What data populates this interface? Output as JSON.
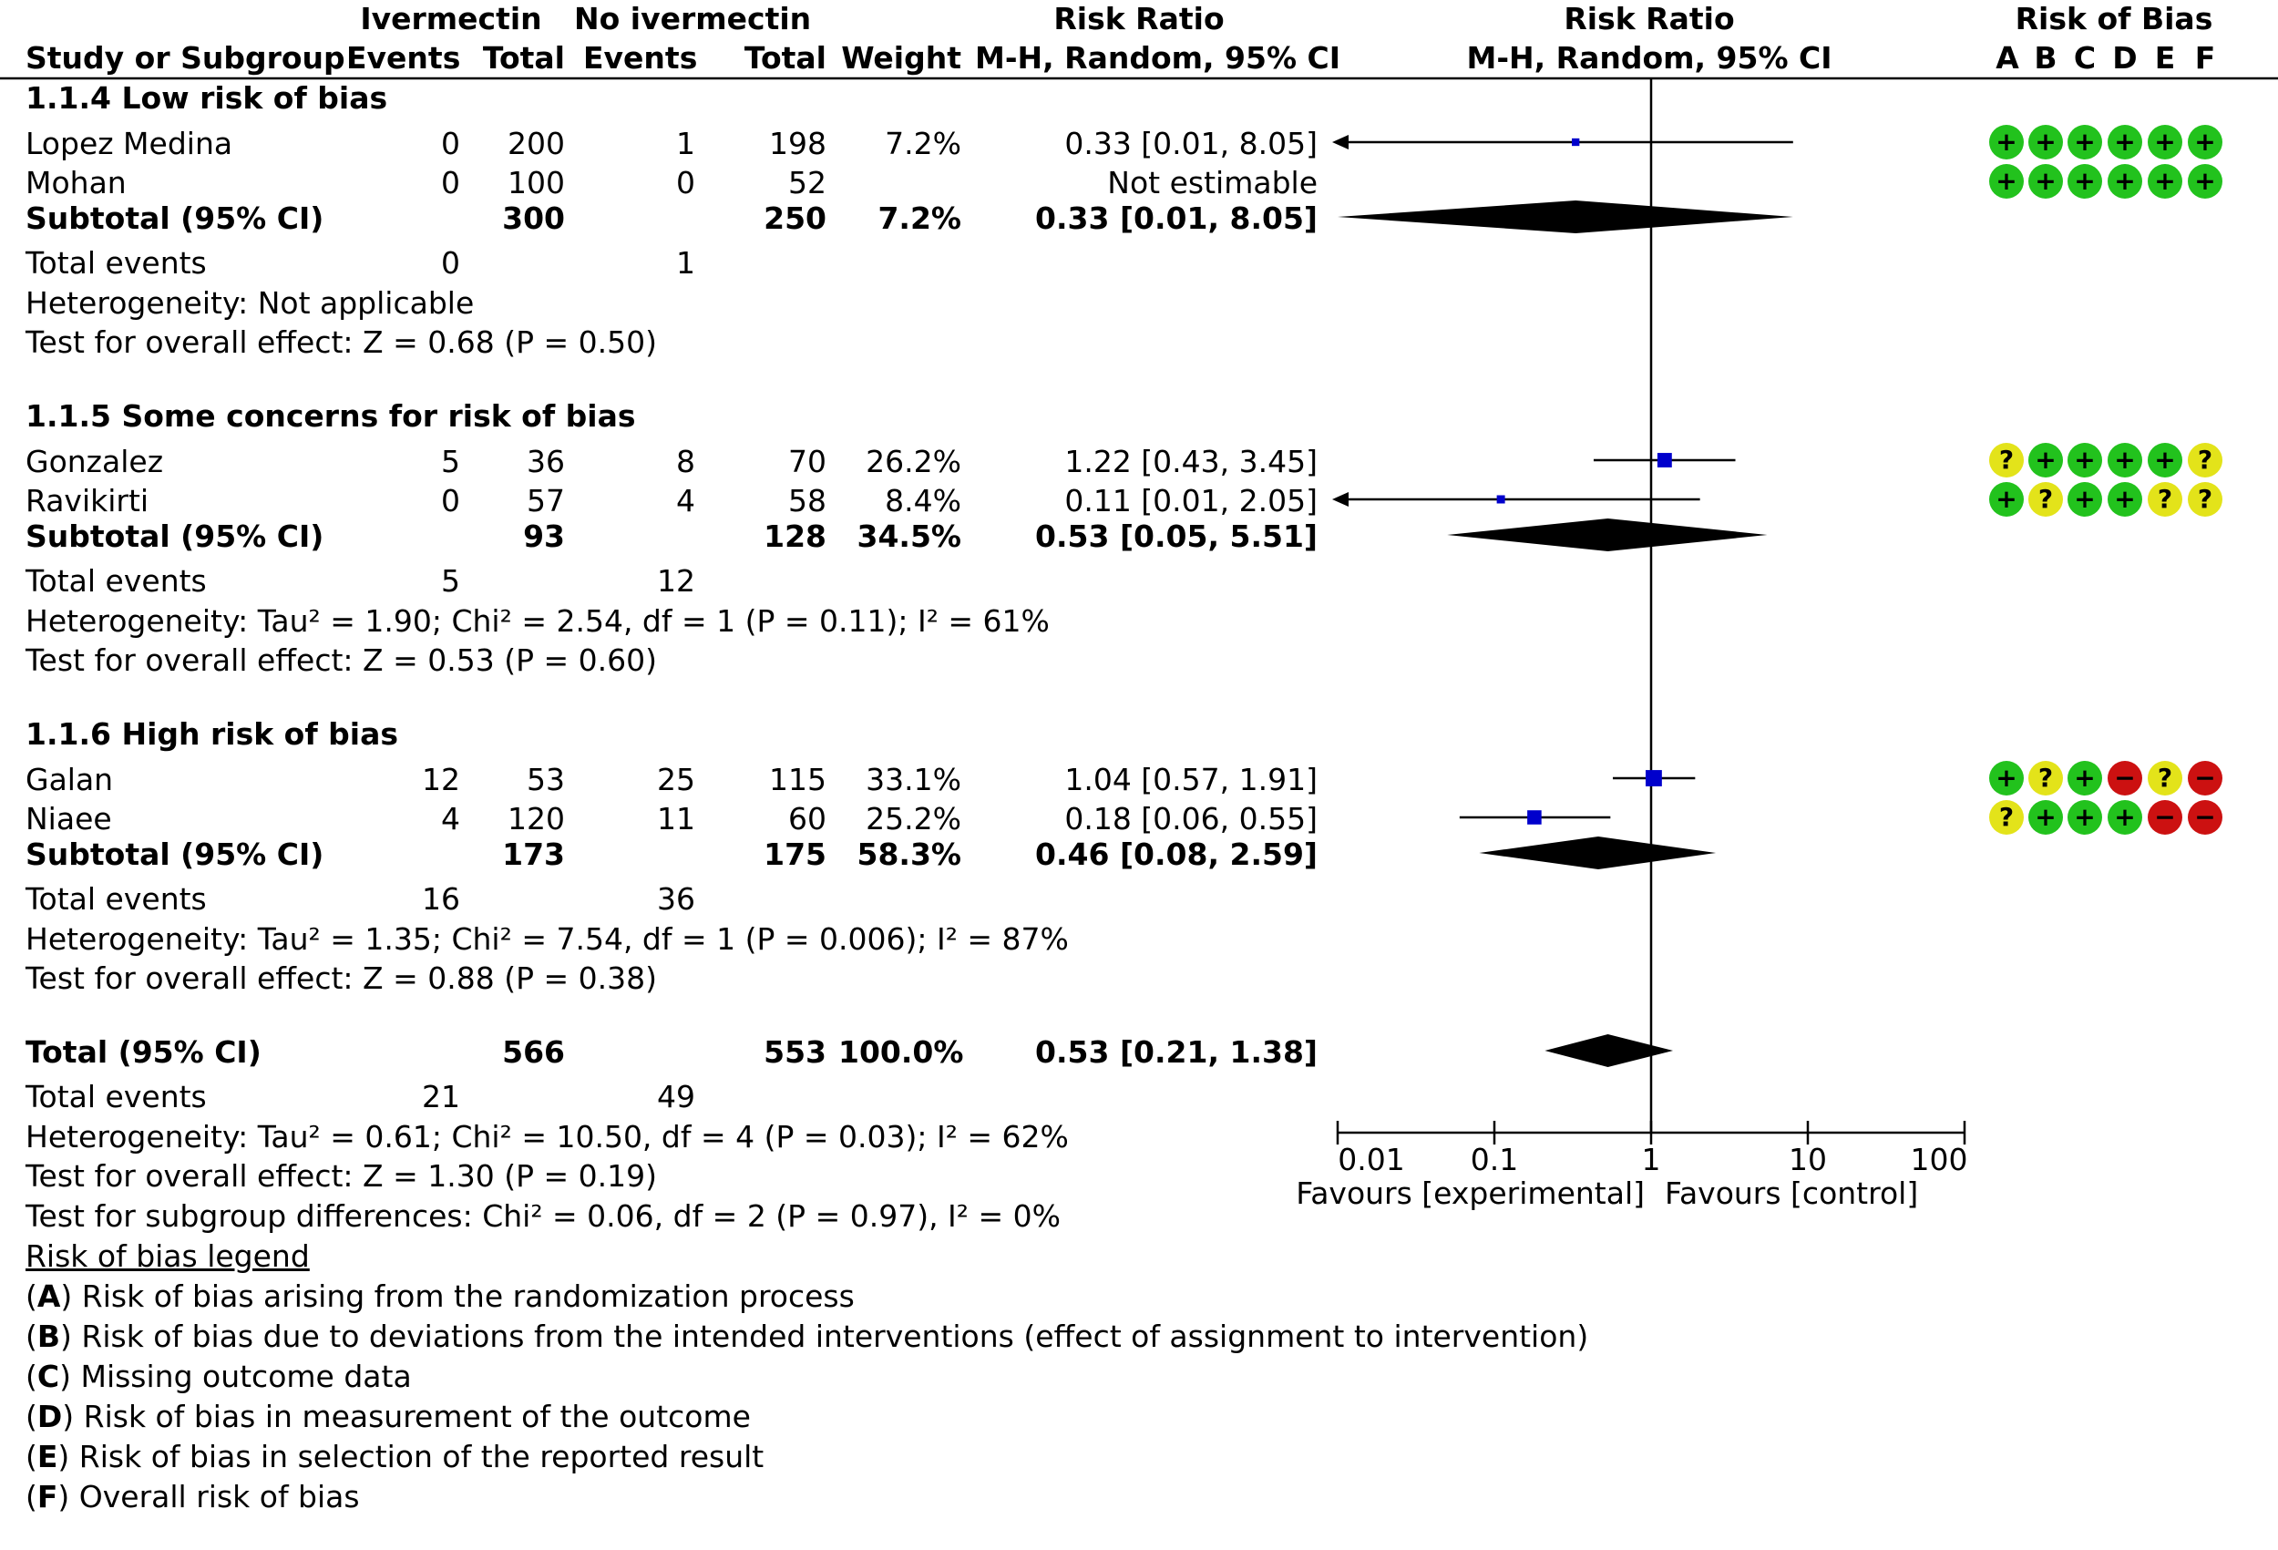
{
  "header": {
    "group1": "Ivermectin",
    "group2": "No ivermectin",
    "rr_col": "Risk Ratio",
    "rr_plot": "Risk Ratio",
    "rob": "Risk of Bias",
    "study": "Study or Subgroup",
    "events1": "Events",
    "total1": "Total",
    "events2": "Events",
    "total2": "Total",
    "weight": "Weight",
    "method_col": "M-H, Random, 95% CI",
    "method_plot": "M-H, Random, 95% CI",
    "rob_letters": [
      "A",
      "B",
      "C",
      "D",
      "E",
      "F"
    ]
  },
  "subgroups": [
    {
      "title": "1.1.4 Low risk of bias",
      "studies": [
        {
          "name": "Lopez Medina",
          "e1": "0",
          "t1": "200",
          "e2": "1",
          "t2": "198",
          "weight": "7.2%",
          "ci": "0.33 [0.01, 8.05]",
          "rr": 0.33,
          "lo": 0.01,
          "hi": 8.05,
          "w": 7.2,
          "rob": [
            "+",
            "+",
            "+",
            "+",
            "+",
            "+"
          ]
        },
        {
          "name": "Mohan",
          "e1": "0",
          "t1": "100",
          "e2": "0",
          "t2": "52",
          "weight": "",
          "ci": "Not estimable",
          "rr": null,
          "lo": null,
          "hi": null,
          "w": 0,
          "rob": [
            "+",
            "+",
            "+",
            "+",
            "+",
            "+"
          ]
        }
      ],
      "subtotal": {
        "label": "Subtotal (95% CI)",
        "t1": "300",
        "t2": "250",
        "weight": "7.2%",
        "ci": "0.33 [0.01, 8.05]",
        "rr": 0.33,
        "lo": 0.01,
        "hi": 8.05
      },
      "events": {
        "label": "Total events",
        "e1": "0",
        "e2": "1"
      },
      "heterogeneity": "Heterogeneity: Not applicable",
      "overall": "Test for overall effect: Z = 0.68 (P = 0.50)"
    },
    {
      "title": "1.1.5 Some concerns for risk of bias",
      "studies": [
        {
          "name": "Gonzalez",
          "e1": "5",
          "t1": "36",
          "e2": "8",
          "t2": "70",
          "weight": "26.2%",
          "ci": "1.22 [0.43, 3.45]",
          "rr": 1.22,
          "lo": 0.43,
          "hi": 3.45,
          "w": 26.2,
          "rob": [
            "?",
            "+",
            "+",
            "+",
            "+",
            "?"
          ]
        },
        {
          "name": "Ravikirti",
          "e1": "0",
          "t1": "57",
          "e2": "4",
          "t2": "58",
          "weight": "8.4%",
          "ci": "0.11 [0.01, 2.05]",
          "rr": 0.11,
          "lo": 0.01,
          "hi": 2.05,
          "w": 8.4,
          "rob": [
            "+",
            "?",
            "+",
            "+",
            "?",
            "?"
          ]
        }
      ],
      "subtotal": {
        "label": "Subtotal (95% CI)",
        "t1": "93",
        "t2": "128",
        "weight": "34.5%",
        "ci": "0.53 [0.05, 5.51]",
        "rr": 0.53,
        "lo": 0.05,
        "hi": 5.51
      },
      "events": {
        "label": "Total events",
        "e1": "5",
        "e2": "12"
      },
      "heterogeneity": "Heterogeneity: Tau² = 1.90; Chi² = 2.54, df = 1 (P = 0.11); I² = 61%",
      "overall": "Test for overall effect: Z = 0.53 (P = 0.60)"
    },
    {
      "title": "1.1.6 High risk of bias",
      "studies": [
        {
          "name": "Galan",
          "e1": "12",
          "t1": "53",
          "e2": "25",
          "t2": "115",
          "weight": "33.1%",
          "ci": "1.04 [0.57, 1.91]",
          "rr": 1.04,
          "lo": 0.57,
          "hi": 1.91,
          "w": 33.1,
          "rob": [
            "+",
            "?",
            "+",
            "-",
            "?",
            "-"
          ]
        },
        {
          "name": "Niaee",
          "e1": "4",
          "t1": "120",
          "e2": "11",
          "t2": "60",
          "weight": "25.2%",
          "ci": "0.18 [0.06, 0.55]",
          "rr": 0.18,
          "lo": 0.06,
          "hi": 0.55,
          "w": 25.2,
          "rob": [
            "?",
            "+",
            "+",
            "+",
            "-",
            "-"
          ]
        }
      ],
      "subtotal": {
        "label": "Subtotal (95% CI)",
        "t1": "173",
        "t2": "175",
        "weight": "58.3%",
        "ci": "0.46 [0.08, 2.59]",
        "rr": 0.46,
        "lo": 0.08,
        "hi": 2.59
      },
      "events": {
        "label": "Total events",
        "e1": "16",
        "e2": "36"
      },
      "heterogeneity": "Heterogeneity: Tau² = 1.35; Chi² = 7.54, df = 1 (P = 0.006); I² = 87%",
      "overall": "Test for overall effect: Z = 0.88 (P = 0.38)"
    }
  ],
  "total": {
    "label": "Total (95% CI)",
    "t1": "566",
    "t2": "553",
    "weight": "100.0%",
    "ci": "0.53 [0.21, 1.38]",
    "rr": 0.53,
    "lo": 0.21,
    "hi": 1.38,
    "events": {
      "label": "Total events",
      "e1": "21",
      "e2": "49"
    },
    "heterogeneity": "Heterogeneity: Tau² = 0.61; Chi² = 10.50, df = 4 (P = 0.03); I² = 62%",
    "overall": "Test for overall effect: Z = 1.30 (P = 0.19)",
    "subgroup_diff": "Test for subgroup differences: Chi² = 0.06, df = 2 (P = 0.97), I² = 0%"
  },
  "axis": {
    "ticks": [
      "0.01",
      "0.1",
      "1",
      "10",
      "100"
    ],
    "favours_left": "Favours [experimental]",
    "favours_right": "Favours [control]"
  },
  "legend": {
    "title": "Risk of bias legend",
    "items": [
      {
        "letter": "A",
        "text": "Risk of bias arising from the randomization process"
      },
      {
        "letter": "B",
        "text": "Risk of bias due to deviations from the intended interventions (effect of assignment to intervention)"
      },
      {
        "letter": "C",
        "text": "Missing outcome data"
      },
      {
        "letter": "D",
        "text": "Risk of bias in measurement of the outcome"
      },
      {
        "letter": "E",
        "text": "Risk of bias in selection of the reported result"
      },
      {
        "letter": "F",
        "text": "Overall risk of bias"
      }
    ]
  },
  "colors": {
    "line": "#000000",
    "square": "#0000cc",
    "plus": "#22c21d",
    "question": "#e3e31a",
    "minus": "#cc1111"
  },
  "chart_data": {
    "type": "forest",
    "scale": "log",
    "xlim": [
      0.01,
      100
    ],
    "x_ticks": [
      0.01,
      0.1,
      1,
      10,
      100
    ],
    "null_line": 1,
    "series": [
      {
        "name": "Lopez Medina",
        "rr": 0.33,
        "lo": 0.01,
        "hi": 8.05,
        "weight": 7.2
      },
      {
        "name": "Mohan",
        "rr": null,
        "lo": null,
        "hi": null,
        "weight": null
      },
      {
        "name": "Gonzalez",
        "rr": 1.22,
        "lo": 0.43,
        "hi": 3.45,
        "weight": 26.2
      },
      {
        "name": "Ravikirti",
        "rr": 0.11,
        "lo": 0.01,
        "hi": 2.05,
        "weight": 8.4
      },
      {
        "name": "Galan",
        "rr": 1.04,
        "lo": 0.57,
        "hi": 1.91,
        "weight": 33.1
      },
      {
        "name": "Niaee",
        "rr": 0.18,
        "lo": 0.06,
        "hi": 0.55,
        "weight": 25.2
      }
    ],
    "pooled": [
      {
        "name": "1.1.4 Low risk of bias",
        "rr": 0.33,
        "lo": 0.01,
        "hi": 8.05
      },
      {
        "name": "1.1.5 Some concerns for risk of bias",
        "rr": 0.53,
        "lo": 0.05,
        "hi": 5.51
      },
      {
        "name": "1.1.6 High risk of bias",
        "rr": 0.46,
        "lo": 0.08,
        "hi": 2.59
      },
      {
        "name": "Total (95% CI)",
        "rr": 0.53,
        "lo": 0.21,
        "hi": 1.38
      }
    ]
  }
}
